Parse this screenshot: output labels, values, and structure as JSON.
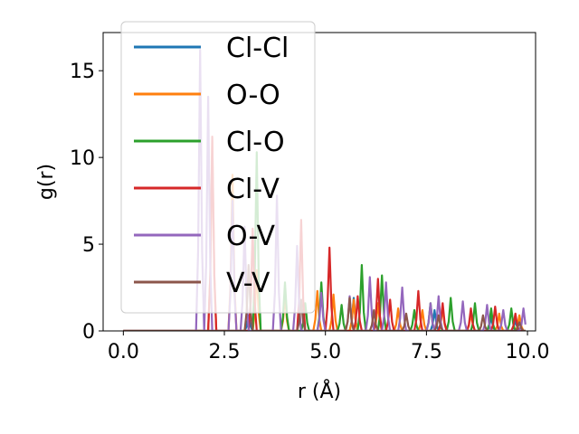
{
  "chart_data": {
    "type": "line",
    "xlabel": "r (Å)",
    "ylabel": "g(r)",
    "xlim": [
      -0.5,
      10.2
    ],
    "ylim": [
      0,
      17.2
    ],
    "xticks": [
      0.0,
      2.5,
      5.0,
      7.5,
      10.0
    ],
    "xtick_labels": [
      "0.0",
      "2.5",
      "5.0",
      "7.5",
      "10.0"
    ],
    "yticks": [
      0,
      5,
      10,
      15
    ],
    "ytick_labels": [
      "0",
      "5",
      "10",
      "15"
    ],
    "grid": false,
    "legend_position": "top-left",
    "series": [
      {
        "name": "Cl-Cl",
        "color": "#1f77b4",
        "peaks": [
          [
            3.1,
            0.9
          ],
          [
            5.7,
            1.9
          ],
          [
            7.7,
            1.2
          ],
          [
            9.1,
            0.8
          ],
          [
            9.7,
            0.6
          ]
        ]
      },
      {
        "name": "O-O",
        "color": "#ff7f0e",
        "peaks": [
          [
            2.2,
            11.0
          ],
          [
            2.7,
            9.0
          ],
          [
            3.3,
            3.5
          ],
          [
            4.0,
            2.0
          ],
          [
            4.8,
            2.3
          ],
          [
            5.2,
            2.1
          ],
          [
            5.7,
            1.8
          ],
          [
            6.3,
            1.6
          ],
          [
            6.8,
            1.3
          ],
          [
            7.4,
            1.2
          ],
          [
            7.9,
            1.3
          ],
          [
            8.6,
            1.0
          ],
          [
            9.3,
            1.0
          ],
          [
            9.8,
            0.9
          ]
        ]
      },
      {
        "name": "Cl-O",
        "color": "#2ca02c",
        "peaks": [
          [
            3.3,
            10.3
          ],
          [
            4.0,
            2.8
          ],
          [
            4.5,
            1.6
          ],
          [
            4.9,
            2.8
          ],
          [
            5.4,
            1.5
          ],
          [
            5.9,
            3.8
          ],
          [
            6.4,
            3.2
          ],
          [
            7.2,
            1.2
          ],
          [
            7.6,
            1.6
          ],
          [
            8.1,
            1.9
          ],
          [
            8.7,
            1.6
          ],
          [
            9.1,
            1.3
          ],
          [
            9.6,
            1.3
          ]
        ]
      },
      {
        "name": "Cl-V",
        "color": "#d62728",
        "peaks": [
          [
            2.2,
            11.2
          ],
          [
            3.2,
            5.9
          ],
          [
            4.4,
            6.4
          ],
          [
            5.1,
            4.8
          ],
          [
            5.8,
            2.0
          ],
          [
            6.3,
            3.0
          ],
          [
            6.6,
            1.8
          ],
          [
            7.3,
            2.3
          ],
          [
            7.9,
            1.6
          ],
          [
            8.6,
            1.3
          ],
          [
            9.2,
            1.4
          ],
          [
            9.7,
            1.0
          ]
        ]
      },
      {
        "name": "O-V",
        "color": "#9467bd",
        "peaks": [
          [
            1.9,
            16.2
          ],
          [
            2.1,
            13.5
          ],
          [
            2.7,
            7.5
          ],
          [
            3.0,
            6.0
          ],
          [
            3.8,
            7.8
          ],
          [
            4.3,
            4.9
          ],
          [
            4.9,
            2.2
          ],
          [
            5.6,
            2.0
          ],
          [
            6.1,
            3.1
          ],
          [
            6.5,
            2.8
          ],
          [
            6.9,
            2.5
          ],
          [
            7.6,
            1.6
          ],
          [
            7.8,
            2.0
          ],
          [
            8.4,
            1.7
          ],
          [
            9.0,
            1.5
          ],
          [
            9.4,
            1.2
          ],
          [
            9.9,
            1.3
          ]
        ]
      },
      {
        "name": "V-V",
        "color": "#8c564b",
        "peaks": [
          [
            3.1,
            3.8
          ],
          [
            4.4,
            1.8
          ],
          [
            5.6,
            1.9
          ],
          [
            6.2,
            1.2
          ],
          [
            7.0,
            1.0
          ],
          [
            7.8,
            0.9
          ],
          [
            8.9,
            0.9
          ],
          [
            9.8,
            0.5
          ]
        ]
      }
    ]
  }
}
